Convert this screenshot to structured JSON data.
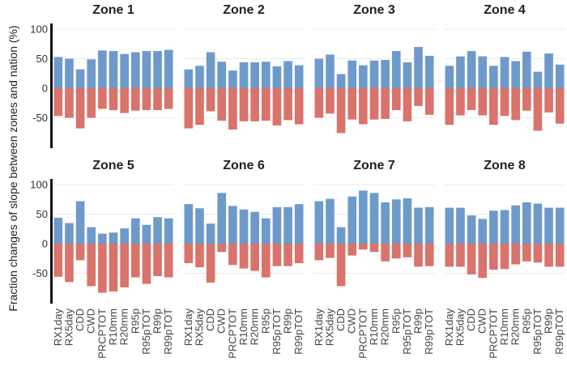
{
  "ylabel": "Fraction changes of slope between zones and nation (%)",
  "colors": {
    "positive": "#6e9acb",
    "negative": "#d9736b"
  },
  "chart_data": {
    "type": "bar",
    "ylabel": "Fraction changes of slope between zones and nation (%)",
    "ylim": [
      -100,
      110
    ],
    "yticks": [
      100,
      50,
      0,
      -50
    ],
    "categories": [
      "RX1day",
      "RX5day",
      "CDD",
      "CWD",
      "PRCPTOT",
      "R10mm",
      "R20mm",
      "R95p",
      "R95pTOT",
      "R99p",
      "R99pTOT"
    ],
    "panels": [
      {
        "title": "Zone 1",
        "positive": [
          53,
          50,
          32,
          49,
          64,
          63,
          58,
          61,
          63,
          63,
          65
        ],
        "negative": [
          -47,
          -50,
          -68,
          -50,
          -35,
          -37,
          -42,
          -38,
          -37,
          -37,
          -35
        ]
      },
      {
        "title": "Zone 2",
        "positive": [
          32,
          38,
          61,
          45,
          30,
          44,
          44,
          45,
          37,
          46,
          39
        ],
        "negative": [
          -68,
          -62,
          -39,
          -55,
          -70,
          -56,
          -56,
          -55,
          -63,
          -54,
          -61
        ]
      },
      {
        "title": "Zone 3",
        "positive": [
          50,
          57,
          24,
          47,
          39,
          47,
          48,
          63,
          44,
          70,
          55
        ],
        "negative": [
          -50,
          -43,
          -76,
          -53,
          -61,
          -53,
          -52,
          -37,
          -56,
          -30,
          -45
        ]
      },
      {
        "title": "Zone 4",
        "positive": [
          38,
          54,
          63,
          54,
          38,
          53,
          46,
          62,
          28,
          59,
          40
        ],
        "negative": [
          -62,
          -46,
          -37,
          -46,
          -62,
          -47,
          -54,
          -38,
          -72,
          -41,
          -60
        ]
      },
      {
        "title": "Zone 5",
        "positive": [
          44,
          35,
          72,
          28,
          17,
          19,
          26,
          43,
          32,
          45,
          43
        ],
        "negative": [
          -56,
          -65,
          -28,
          -72,
          -83,
          -81,
          -74,
          -57,
          -68,
          -55,
          -57
        ]
      },
      {
        "title": "Zone 6",
        "positive": [
          67,
          60,
          34,
          86,
          64,
          58,
          54,
          43,
          62,
          62,
          67
        ],
        "negative": [
          -33,
          -40,
          -66,
          -14,
          -36,
          -42,
          -46,
          -57,
          -38,
          -38,
          -33
        ]
      },
      {
        "title": "Zone 7",
        "positive": [
          72,
          76,
          28,
          80,
          90,
          86,
          70,
          75,
          77,
          61,
          62
        ],
        "negative": [
          -28,
          -24,
          -72,
          -20,
          -10,
          -14,
          -30,
          -25,
          -23,
          -39,
          -38
        ]
      },
      {
        "title": "Zone 8",
        "positive": [
          61,
          61,
          48,
          42,
          56,
          57,
          65,
          70,
          68,
          61,
          61
        ],
        "negative": [
          -39,
          -39,
          -52,
          -58,
          -44,
          -43,
          -35,
          -30,
          -32,
          -39,
          -39
        ]
      }
    ]
  }
}
